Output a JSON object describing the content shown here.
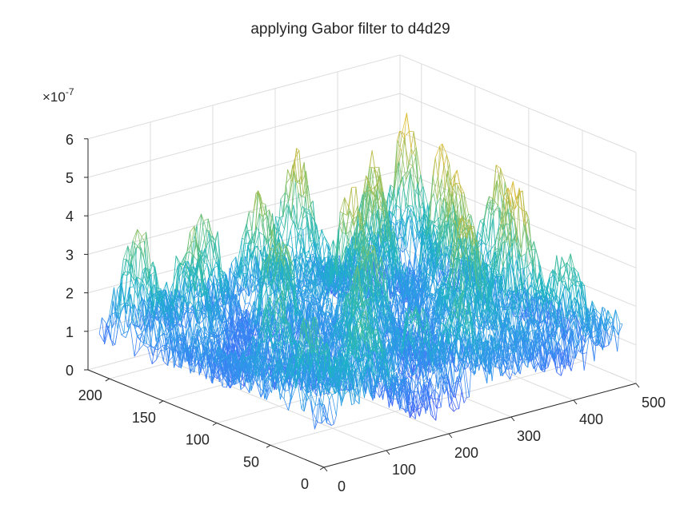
{
  "chart_data": {
    "type": "surface",
    "title": "applying Gabor filter to d4d29",
    "xlabel": "",
    "ylabel": "",
    "zlabel": "",
    "xlim": [
      0,
      500
    ],
    "ylim": [
      0,
      220
    ],
    "zlim": [
      0,
      6
    ],
    "x_ticks": [
      0,
      100,
      200,
      300,
      400,
      500
    ],
    "y_ticks": [
      0,
      50,
      100,
      150,
      200
    ],
    "z_ticks": [
      0,
      1,
      2,
      3,
      4,
      5,
      6
    ],
    "x_tick_labels": [
      "0",
      "100",
      "200",
      "300",
      "400",
      "500"
    ],
    "y_tick_labels": [
      "0",
      "50",
      "100",
      "150",
      "200"
    ],
    "z_tick_labels": [
      "0",
      "1",
      "2",
      "3",
      "4",
      "5",
      "6"
    ],
    "z_multiplier": "×10",
    "z_exponent": "-7",
    "data_extent": {
      "x": [
        1,
        480
      ],
      "y": [
        1,
        210
      ]
    },
    "z_range_observed": [
      0,
      6
    ],
    "colormap": "parula",
    "colormap_stops": [
      "#3e26a8",
      "#4367fd",
      "#2f97eb",
      "#1cb3c6",
      "#3ebd9f",
      "#8dc05f",
      "#d2b93c",
      "#f3c92e",
      "#f9fb15"
    ],
    "peaks": [
      {
        "x": 450,
        "y": 185,
        "z": 5.2
      },
      {
        "x": 430,
        "y": 140,
        "z": 5.1
      },
      {
        "x": 470,
        "y": 110,
        "z": 4.8
      },
      {
        "x": 410,
        "y": 60,
        "z": 4.9
      },
      {
        "x": 380,
        "y": 175,
        "z": 4.9
      },
      {
        "x": 400,
        "y": 110,
        "z": 4.5
      },
      {
        "x": 330,
        "y": 60,
        "z": 4.6
      },
      {
        "x": 340,
        "y": 150,
        "z": 4.6
      },
      {
        "x": 300,
        "y": 200,
        "z": 4.4
      },
      {
        "x": 270,
        "y": 130,
        "z": 4.3
      },
      {
        "x": 210,
        "y": 180,
        "z": 4.2
      },
      {
        "x": 230,
        "y": 90,
        "z": 4.0
      },
      {
        "x": 140,
        "y": 190,
        "z": 4.0
      },
      {
        "x": 150,
        "y": 130,
        "z": 4.4
      },
      {
        "x": 160,
        "y": 60,
        "z": 3.7
      },
      {
        "x": 80,
        "y": 170,
        "z": 3.8
      },
      {
        "x": 60,
        "y": 80,
        "z": 3.6
      },
      {
        "x": 30,
        "y": 190,
        "z": 3.8
      },
      {
        "x": 30,
        "y": 30,
        "z": 3.0
      },
      {
        "x": 100,
        "y": 20,
        "z": 3.2
      },
      {
        "x": 250,
        "y": 20,
        "z": 3.2
      },
      {
        "x": 440,
        "y": 30,
        "z": 3.4
      },
      {
        "x": 200,
        "y": 30,
        "z": 3.6
      }
    ],
    "grid": true
  }
}
